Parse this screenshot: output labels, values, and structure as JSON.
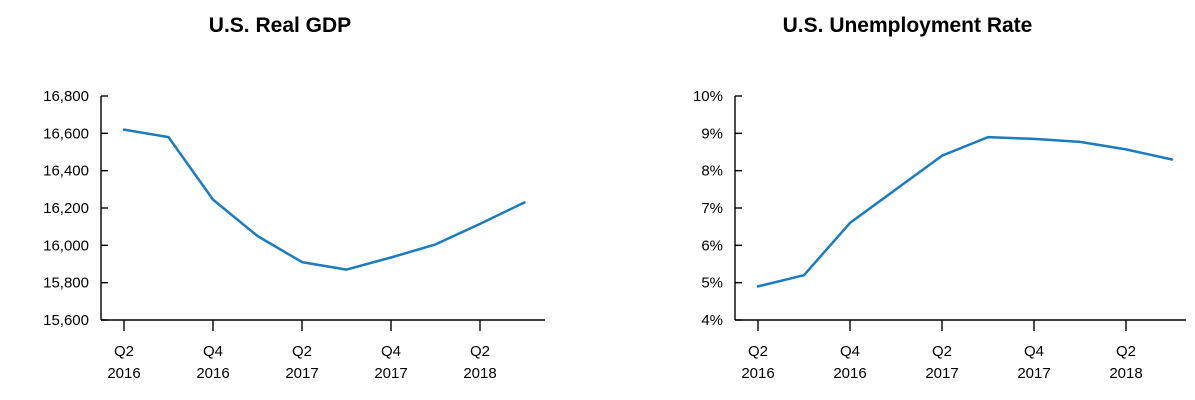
{
  "chart_data": [
    {
      "type": "line",
      "title": "U.S. Real GDP",
      "xlabel": "",
      "ylabel": "",
      "ylim": [
        15600,
        16800
      ],
      "yticks": [
        "16,800",
        "16,600",
        "16,400",
        "16,200",
        "16,000",
        "15,800",
        "15,600"
      ],
      "ytick_values": [
        16800,
        16600,
        16400,
        16200,
        16000,
        15800,
        15600
      ],
      "x": [
        "Q2 2016",
        "Q3 2016",
        "Q4 2016",
        "Q1 2017",
        "Q2 2017",
        "Q3 2017",
        "Q4 2017",
        "Q1 2018",
        "Q2 2018",
        "Q3 2018"
      ],
      "x_tick_labels": [
        {
          "top": "Q2",
          "bottom": "2016"
        },
        {
          "top": "Q4",
          "bottom": "2016"
        },
        {
          "top": "Q2",
          "bottom": "2017"
        },
        {
          "top": "Q4",
          "bottom": "2017"
        },
        {
          "top": "Q2",
          "bottom": "2018"
        }
      ],
      "series": [
        {
          "values": [
            16620,
            16580,
            16245,
            16050,
            15910,
            15870,
            15935,
            16005,
            16115,
            16230
          ],
          "color": "#1b7bbf"
        }
      ],
      "grid": false
    },
    {
      "type": "line",
      "title": "U.S. Unemployment Rate",
      "xlabel": "",
      "ylabel": "",
      "ylim": [
        4,
        10
      ],
      "yticks": [
        "10%",
        "9%",
        "8%",
        "7%",
        "6%",
        "5%",
        "4%"
      ],
      "ytick_values": [
        10,
        9,
        8,
        7,
        6,
        5,
        4
      ],
      "x": [
        "Q2 2016",
        "Q3 2016",
        "Q4 2016",
        "Q1 2017",
        "Q2 2017",
        "Q3 2017",
        "Q4 2017",
        "Q1 2018",
        "Q2 2018",
        "Q3 2018"
      ],
      "x_tick_labels": [
        {
          "top": "Q2",
          "bottom": "2016"
        },
        {
          "top": "Q4",
          "bottom": "2016"
        },
        {
          "top": "Q2",
          "bottom": "2017"
        },
        {
          "top": "Q4",
          "bottom": "2017"
        },
        {
          "top": "Q2",
          "bottom": "2018"
        }
      ],
      "series": [
        {
          "values": [
            4.9,
            5.2,
            6.6,
            7.5,
            8.4,
            8.9,
            8.85,
            8.77,
            8.57,
            8.3
          ],
          "color": "#1b7bbf"
        }
      ],
      "grid": false
    }
  ]
}
